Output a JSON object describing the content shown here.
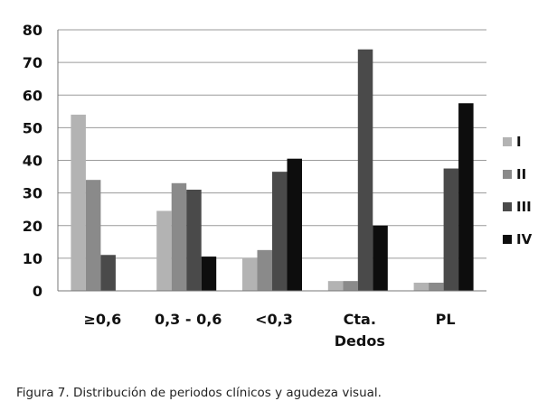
{
  "caption": "Figura 7. Distribución de periodos clínicos y agudeza visual.",
  "chart_data": {
    "type": "bar",
    "categories": [
      [
        "≥0,6"
      ],
      [
        "0,3 - 0,6"
      ],
      [
        "<0,3"
      ],
      [
        "Cta.",
        "Dedos"
      ],
      [
        "PL"
      ]
    ],
    "series": [
      {
        "name": "I",
        "color": "#b3b3b3",
        "values": [
          54,
          24.5,
          10,
          3,
          2.5
        ]
      },
      {
        "name": "II",
        "color": "#8a8a8a",
        "values": [
          34,
          33,
          12.5,
          3,
          2.5
        ]
      },
      {
        "name": "III",
        "color": "#4a4a4a",
        "values": [
          11,
          31,
          36.5,
          74,
          37.5
        ]
      },
      {
        "name": "IV",
        "color": "#0d0d0d",
        "values": [
          0,
          10.5,
          40.5,
          20,
          57.5
        ]
      }
    ],
    "ylim": [
      0,
      80
    ],
    "yticks": [
      0,
      10,
      20,
      30,
      40,
      50,
      60,
      70,
      80
    ],
    "grid": true,
    "legend": "right"
  }
}
